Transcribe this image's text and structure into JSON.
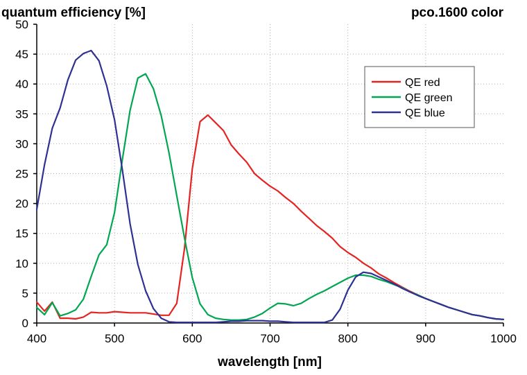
{
  "chart_data": {
    "type": "line",
    "title_left": "quantum efficiency [%]",
    "title_right": "pco.1600 color",
    "xlabel": "wavelength [nm]",
    "ylabel": "",
    "xlim": [
      400,
      1000
    ],
    "ylim": [
      0,
      50
    ],
    "x_ticks": [
      400,
      500,
      600,
      700,
      800,
      900,
      1000
    ],
    "y_ticks": [
      0,
      5,
      10,
      15,
      20,
      25,
      30,
      35,
      40,
      45,
      50
    ],
    "grid": true,
    "legend_position": "top-right",
    "series": [
      {
        "name": "QE red",
        "color": "#e52421",
        "x": [
          400,
          410,
          420,
          430,
          440,
          450,
          460,
          470,
          480,
          490,
          500,
          510,
          520,
          530,
          540,
          550,
          560,
          570,
          580,
          590,
          600,
          610,
          620,
          630,
          640,
          650,
          660,
          670,
          680,
          690,
          700,
          710,
          720,
          730,
          740,
          750,
          760,
          770,
          780,
          790,
          800,
          810,
          820,
          830,
          840,
          850,
          860,
          870,
          880,
          890,
          900,
          910,
          920,
          930,
          940,
          950,
          960,
          970,
          980,
          990,
          1000
        ],
        "values": [
          3.5,
          2.0,
          3.5,
          0.8,
          0.8,
          0.7,
          1.0,
          1.8,
          1.7,
          1.7,
          1.9,
          1.8,
          1.7,
          1.7,
          1.7,
          1.5,
          1.3,
          1.3,
          3.3,
          12.5,
          25.8,
          33.7,
          34.8,
          33.5,
          32.2,
          29.8,
          28.3,
          26.9,
          25.0,
          23.9,
          22.9,
          22.1,
          21.0,
          20.0,
          18.7,
          17.5,
          16.3,
          15.3,
          14.2,
          12.8,
          11.8,
          11.0,
          10.0,
          9.2,
          8.2,
          7.5,
          6.7,
          6.0,
          5.3,
          4.7,
          4.1,
          3.6,
          3.1,
          2.6,
          2.2,
          1.8,
          1.4,
          1.2,
          0.9,
          0.7,
          0.6
        ]
      },
      {
        "name": "QE green",
        "color": "#00a651",
        "x": [
          400,
          410,
          420,
          430,
          440,
          450,
          460,
          470,
          480,
          490,
          500,
          510,
          520,
          530,
          540,
          550,
          560,
          570,
          580,
          590,
          600,
          610,
          620,
          630,
          640,
          650,
          660,
          670,
          680,
          690,
          700,
          710,
          720,
          730,
          740,
          750,
          760,
          770,
          780,
          790,
          800,
          810,
          820,
          830,
          840,
          850,
          860,
          870,
          880,
          890,
          900,
          910,
          920,
          930,
          940,
          950,
          960,
          970,
          980,
          990,
          1000
        ],
        "values": [
          2.6,
          1.4,
          3.4,
          1.2,
          1.6,
          2.2,
          4.0,
          7.8,
          11.4,
          13.1,
          18.5,
          27.3,
          35.6,
          41.0,
          41.7,
          39.2,
          34.7,
          28.5,
          21.3,
          14.2,
          7.6,
          3.2,
          1.4,
          0.8,
          0.6,
          0.5,
          0.5,
          0.6,
          1.0,
          1.6,
          2.5,
          3.3,
          3.2,
          2.9,
          3.3,
          4.1,
          4.8,
          5.4,
          6.1,
          6.8,
          7.5,
          8.0,
          8.0,
          7.8,
          7.3,
          6.9,
          6.4,
          5.9,
          5.2,
          4.7,
          4.1,
          3.6,
          3.1,
          2.6,
          2.2,
          1.8,
          1.4,
          1.2,
          0.9,
          0.7,
          0.6
        ]
      },
      {
        "name": "QE blue",
        "color": "#2e3192",
        "x": [
          400,
          410,
          420,
          430,
          440,
          450,
          460,
          470,
          480,
          490,
          500,
          510,
          520,
          530,
          540,
          550,
          560,
          570,
          580,
          590,
          600,
          610,
          620,
          630,
          640,
          650,
          660,
          670,
          680,
          690,
          700,
          710,
          720,
          730,
          740,
          750,
          760,
          770,
          780,
          790,
          800,
          810,
          820,
          830,
          840,
          850,
          860,
          870,
          880,
          890,
          900,
          910,
          920,
          930,
          940,
          950,
          960,
          970,
          980,
          990,
          1000
        ],
        "values": [
          19.0,
          26.5,
          32.6,
          36.0,
          40.7,
          44.0,
          45.1,
          45.6,
          43.9,
          39.7,
          34.0,
          25.7,
          16.6,
          9.8,
          5.4,
          2.4,
          0.8,
          0.2,
          0.1,
          0.1,
          0.1,
          0.1,
          0.1,
          0.1,
          0.2,
          0.3,
          0.3,
          0.4,
          0.4,
          0.4,
          0.3,
          0.3,
          0.2,
          0.1,
          0.1,
          0.1,
          0.1,
          0.1,
          0.5,
          2.3,
          5.5,
          7.7,
          8.5,
          8.3,
          7.7,
          7.1,
          6.5,
          5.8,
          5.2,
          4.6,
          4.1,
          3.6,
          3.1,
          2.6,
          2.2,
          1.8,
          1.4,
          1.2,
          0.9,
          0.7,
          0.6
        ]
      }
    ]
  }
}
